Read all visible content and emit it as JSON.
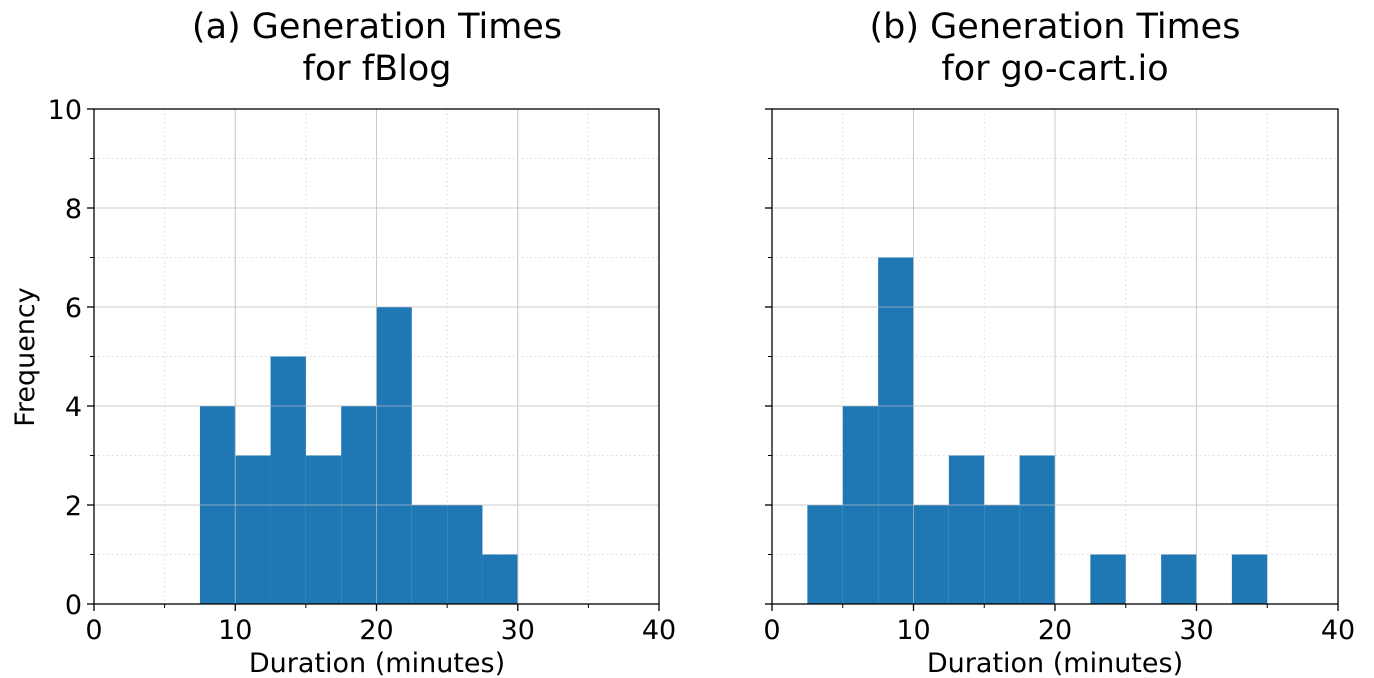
{
  "colors": {
    "bar": "#1f77b4",
    "grid_major": "#cccccc",
    "grid_minor": "#d9d9d9",
    "axis": "#000000"
  },
  "chart_data": [
    {
      "type": "bar",
      "subtype": "histogram",
      "title_lines": [
        "(a) Generation Times",
        "for fBlog"
      ],
      "xlabel": "Duration (minutes)",
      "ylabel": "Frequency",
      "xlim": [
        0,
        40
      ],
      "ylim": [
        0,
        10
      ],
      "xticks": [
        0,
        10,
        20,
        30,
        40
      ],
      "yticks": [
        0,
        2,
        4,
        6,
        8,
        10
      ],
      "grid": "major solid, minor dotted",
      "bins": [
        {
          "x0": 7.5,
          "x1": 10,
          "value": 4
        },
        {
          "x0": 10,
          "x1": 12.5,
          "value": 3
        },
        {
          "x0": 12.5,
          "x1": 15,
          "value": 5
        },
        {
          "x0": 15,
          "x1": 17.5,
          "value": 3
        },
        {
          "x0": 17.5,
          "x1": 20,
          "value": 4
        },
        {
          "x0": 20,
          "x1": 22.5,
          "value": 6
        },
        {
          "x0": 22.5,
          "x1": 25,
          "value": 2
        },
        {
          "x0": 25,
          "x1": 27.5,
          "value": 2
        },
        {
          "x0": 27.5,
          "x1": 30,
          "value": 1
        }
      ]
    },
    {
      "type": "bar",
      "subtype": "histogram",
      "title_lines": [
        "(b) Generation Times",
        "for go-cart.io"
      ],
      "xlabel": "Duration (minutes)",
      "ylabel": "",
      "xlim": [
        0,
        40
      ],
      "ylim": [
        0,
        10
      ],
      "xticks": [
        0,
        10,
        20,
        30,
        40
      ],
      "yticks": [
        0,
        2,
        4,
        6,
        8,
        10
      ],
      "show_ytick_labels": false,
      "grid": "major solid, minor dotted",
      "bins": [
        {
          "x0": 2.5,
          "x1": 5,
          "value": 2
        },
        {
          "x0": 5,
          "x1": 7.5,
          "value": 4
        },
        {
          "x0": 7.5,
          "x1": 10,
          "value": 7
        },
        {
          "x0": 10,
          "x1": 12.5,
          "value": 2
        },
        {
          "x0": 12.5,
          "x1": 15,
          "value": 3
        },
        {
          "x0": 15,
          "x1": 17.5,
          "value": 2
        },
        {
          "x0": 17.5,
          "x1": 20,
          "value": 3
        },
        {
          "x0": 20,
          "x1": 22.5,
          "value": 0
        },
        {
          "x0": 22.5,
          "x1": 25,
          "value": 1
        },
        {
          "x0": 25,
          "x1": 27.5,
          "value": 0
        },
        {
          "x0": 27.5,
          "x1": 30,
          "value": 1
        },
        {
          "x0": 30,
          "x1": 32.5,
          "value": 0
        },
        {
          "x0": 32.5,
          "x1": 35,
          "value": 1
        }
      ]
    }
  ]
}
